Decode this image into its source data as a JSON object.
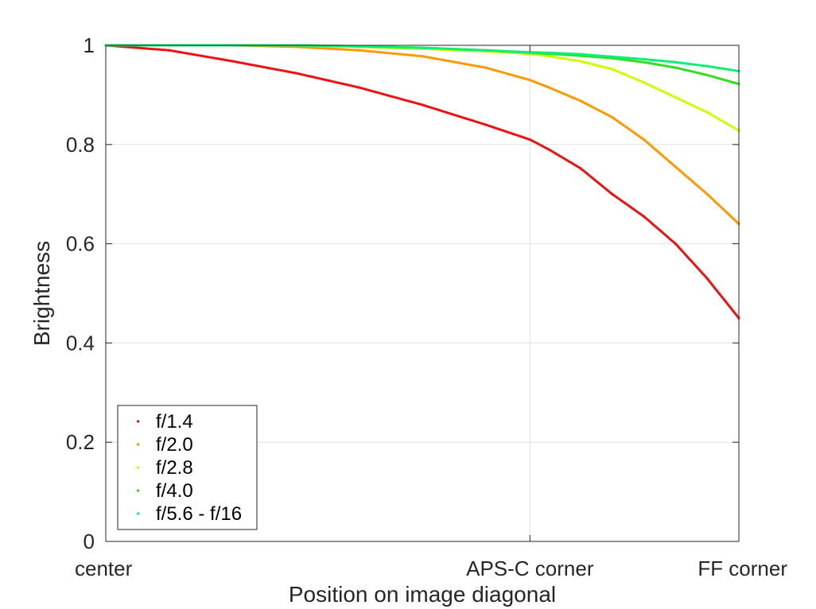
{
  "chart_data": {
    "type": "scatter",
    "xlabel": "Position on image diagonal",
    "ylabel": "Brightness",
    "x_ticks": [
      {
        "value": 0,
        "label": "center"
      },
      {
        "value": 0.67,
        "label": "APS-C corner"
      },
      {
        "value": 1,
        "label": "FF corner"
      }
    ],
    "y_ticks": [
      {
        "value": 0,
        "label": "0"
      },
      {
        "value": 0.2,
        "label": "0.2"
      },
      {
        "value": 0.4,
        "label": "0.4"
      },
      {
        "value": 0.6,
        "label": "0.6"
      },
      {
        "value": 0.8,
        "label": "0.8"
      },
      {
        "value": 1,
        "label": "1"
      }
    ],
    "xlim": [
      0,
      1
    ],
    "ylim": [
      0,
      1
    ],
    "grid": true,
    "legend_position": "bottom-left",
    "x": [
      0,
      0.1,
      0.2,
      0.3,
      0.4,
      0.5,
      0.6,
      0.67,
      0.7,
      0.75,
      0.8,
      0.85,
      0.9,
      0.95,
      1.0
    ],
    "series": [
      {
        "name": "f/1.4",
        "color": "#ee1111",
        "values": [
          1.0,
          0.99,
          0.968,
          0.944,
          0.915,
          0.88,
          0.84,
          0.81,
          0.79,
          0.752,
          0.7,
          0.655,
          0.6,
          0.53,
          0.45
        ]
      },
      {
        "name": "f/2.0",
        "color": "#ff9900",
        "values": [
          1.0,
          1.0,
          1.0,
          0.997,
          0.99,
          0.978,
          0.955,
          0.93,
          0.915,
          0.888,
          0.855,
          0.81,
          0.755,
          0.7,
          0.64
        ]
      },
      {
        "name": "f/2.8",
        "color": "#ccff00",
        "values": [
          1.0,
          1.0,
          1.0,
          1.0,
          0.997,
          0.993,
          0.988,
          0.983,
          0.978,
          0.968,
          0.952,
          0.925,
          0.895,
          0.865,
          0.828
        ]
      },
      {
        "name": "f/4.0",
        "color": "#33dd22",
        "values": [
          1.0,
          1.0,
          1.0,
          1.0,
          0.998,
          0.995,
          0.99,
          0.985,
          0.983,
          0.979,
          0.974,
          0.966,
          0.955,
          0.94,
          0.922
        ]
      },
      {
        "name": "f/5.6 - f/16",
        "color": "#11ee77",
        "values": [
          1.0,
          1.0,
          1.0,
          1.0,
          0.998,
          0.995,
          0.99,
          0.986,
          0.985,
          0.982,
          0.977,
          0.972,
          0.966,
          0.958,
          0.948
        ]
      }
    ]
  }
}
